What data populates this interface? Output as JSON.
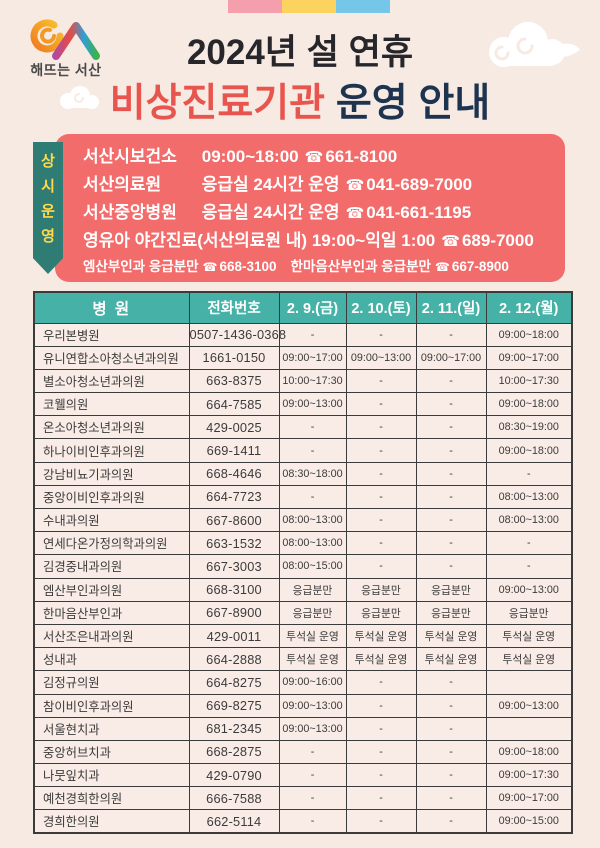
{
  "header": {
    "logo_text": "해뜨는 서산",
    "title_line1": "2024년 설 연휴",
    "title_line2_red": "비상진료기관",
    "title_line2_navy": " 운영 안내",
    "bar_colors": [
      "#f49fab",
      "#fcd35e",
      "#74c7e9"
    ]
  },
  "always_open": {
    "ribbon_chars": [
      "상",
      "시",
      "운",
      "영"
    ],
    "phone_icon": "☎",
    "lines": [
      {
        "name": "서산시보건소",
        "detail": "09:00~18:00",
        "phone": "661-8100"
      },
      {
        "name": "서산의료원",
        "detail": "응급실 24시간 운영",
        "phone": "041-689-7000"
      },
      {
        "name": "서산중앙병원",
        "detail": "응급실 24시간 운영",
        "phone": "041-661-1195"
      },
      {
        "name": "영유아 야간진료(서산의료원 내)",
        "detail": "19:00~익일 1:00",
        "phone": "689-7000"
      }
    ],
    "sub_items": [
      {
        "name": "엠산부인과 응급분만",
        "phone": "668-3100"
      },
      {
        "name": "한마음산부인과 응급분만",
        "phone": "667-8900"
      }
    ]
  },
  "table": {
    "columns": [
      "병 원",
      "전화번호",
      "2. 9.(금)",
      "2. 10.(토)",
      "2. 11.(일)",
      "2. 12.(월)"
    ],
    "rows": [
      [
        "우리본병원",
        "0507-1436-0368",
        "-",
        "-",
        "-",
        "09:00~18:00"
      ],
      [
        "유니연합소아청소년과의원",
        "1661-0150",
        "09:00~17:00",
        "09:00~13:00",
        "09:00~17:00",
        "09:00~17:00"
      ],
      [
        "별소아청소년과의원",
        "663-8375",
        "10:00~17:30",
        "-",
        "-",
        "10:00~17:30"
      ],
      [
        "코웰의원",
        "664-7585",
        "09:00~13:00",
        "-",
        "-",
        "09:00~18:00"
      ],
      [
        "온소아청소년과의원",
        "429-0025",
        "-",
        "-",
        "-",
        "08:30~19:00"
      ],
      [
        "하나이비인후과의원",
        "669-1411",
        "-",
        "-",
        "-",
        "09:00~18:00"
      ],
      [
        "강남비뇨기과의원",
        "668-4646",
        "08:30~18:00",
        "-",
        "-",
        "-"
      ],
      [
        "중앙이비인후과의원",
        "664-7723",
        "-",
        "-",
        "-",
        "08:00~13:00"
      ],
      [
        "수내과의원",
        "667-8600",
        "08:00~13:00",
        "-",
        "-",
        "08:00~13:00"
      ],
      [
        "연세다온가정의학과의원",
        "663-1532",
        "08:00~13:00",
        "-",
        "-",
        "-"
      ],
      [
        "김경중내과의원",
        "667-3003",
        "08:00~15:00",
        "-",
        "-",
        "-"
      ],
      [
        "엠산부인과의원",
        "668-3100",
        "응급분만",
        "응급분만",
        "응급분만",
        "09:00~13:00"
      ],
      [
        "한마음산부인과",
        "667-8900",
        "응급분만",
        "응급분만",
        "응급분만",
        "응급분만"
      ],
      [
        "서산조은내과의원",
        "429-0011",
        "투석실 운영",
        "투석실 운영",
        "투석실 운영",
        "투석실 운영"
      ],
      [
        "성내과",
        "664-2888",
        "투석실 운영",
        "투석실 운영",
        "투석실 운영",
        "투석실 운영"
      ],
      [
        "김정규의원",
        "664-8275",
        "09:00~16:00",
        "-",
        "-",
        ""
      ],
      [
        "참이비인후과의원",
        "669-8275",
        "09:00~13:00",
        "-",
        "-",
        "09:00~13:00"
      ],
      [
        "서울현치과",
        "681-2345",
        "09:00~13:00",
        "-",
        "-",
        ""
      ],
      [
        "중앙허브치과",
        "668-2875",
        "-",
        "-",
        "-",
        "09:00~18:00"
      ],
      [
        "나뭇잎치과",
        "429-0790",
        "-",
        "-",
        "-",
        "09:00~17:30"
      ],
      [
        "예천경희한의원",
        "666-7588",
        "-",
        "-",
        "-",
        "09:00~17:00"
      ],
      [
        "경희한의원",
        "662-5114",
        "-",
        "-",
        "-",
        "09:00~15:00"
      ]
    ]
  },
  "colors": {
    "page_bg": "#f7eae3",
    "box_red": "#f26c6b",
    "ribbon_teal": "#2e7c74",
    "ribbon_yellow": "#ffd94f",
    "table_header_teal": "#45b1a7",
    "title_red": "#e8554e",
    "title_navy": "#1e3350",
    "border_dark": "#3b3b3b"
  }
}
